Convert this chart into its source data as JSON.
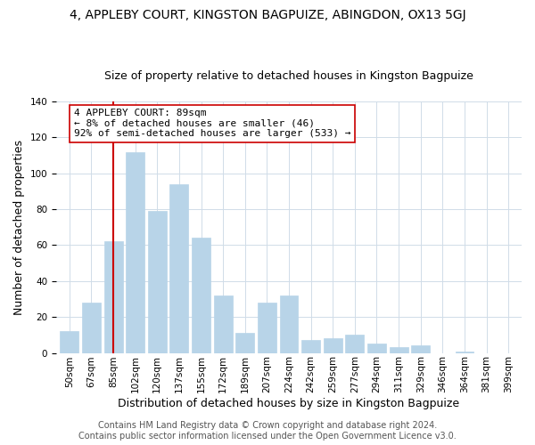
{
  "title": "4, APPLEBY COURT, KINGSTON BAGPUIZE, ABINGDON, OX13 5GJ",
  "subtitle": "Size of property relative to detached houses in Kingston Bagpuize",
  "xlabel": "Distribution of detached houses by size in Kingston Bagpuize",
  "ylabel": "Number of detached properties",
  "bar_labels": [
    "50sqm",
    "67sqm",
    "85sqm",
    "102sqm",
    "120sqm",
    "137sqm",
    "155sqm",
    "172sqm",
    "189sqm",
    "207sqm",
    "224sqm",
    "242sqm",
    "259sqm",
    "277sqm",
    "294sqm",
    "311sqm",
    "329sqm",
    "346sqm",
    "364sqm",
    "381sqm",
    "399sqm"
  ],
  "bar_values": [
    12,
    28,
    62,
    112,
    79,
    94,
    64,
    32,
    11,
    28,
    32,
    7,
    8,
    10,
    5,
    3,
    4,
    0,
    1,
    0,
    0
  ],
  "bar_color": "#b8d4e8",
  "bar_edge_color": "#b8d4e8",
  "vline_x": 2,
  "vline_color": "#cc0000",
  "annotation_title": "4 APPLEBY COURT: 89sqm",
  "annotation_line1": "← 8% of detached houses are smaller (46)",
  "annotation_line2": "92% of semi-detached houses are larger (533) →",
  "annotation_box_color": "#ffffff",
  "annotation_box_edge": "#cc0000",
  "ylim": [
    0,
    140
  ],
  "footer1": "Contains HM Land Registry data © Crown copyright and database right 2024.",
  "footer2": "Contains public sector information licensed under the Open Government Licence v3.0.",
  "bg_color": "#ffffff",
  "grid_color": "#d0dce8",
  "title_fontsize": 10,
  "subtitle_fontsize": 9,
  "axis_label_fontsize": 9,
  "tick_fontsize": 7.5,
  "annotation_fontsize": 8,
  "footer_fontsize": 7
}
